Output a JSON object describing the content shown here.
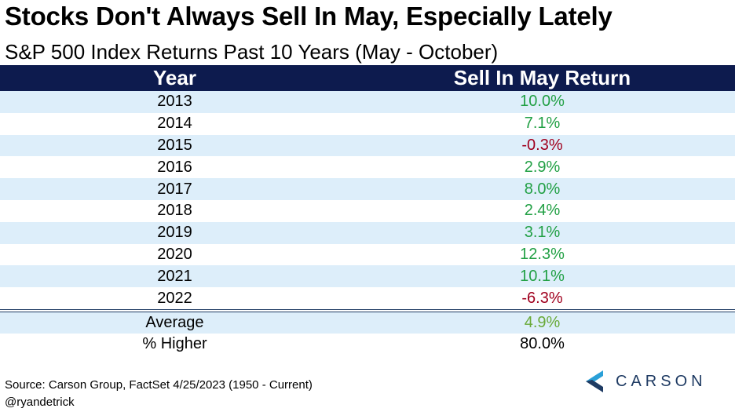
{
  "title": "Stocks Don't Always Sell In May, Especially Lately",
  "subtitle": "S&P 500 Index Returns Past 10 Years (May - October)",
  "source": "Source: Carson Group, FactSet 4/25/2023 (1950 - Current)",
  "handle": "@ryandetrick",
  "logo_text": "CARSON",
  "colors": {
    "header_bg": "#0d1b4e",
    "band": "#ddeefa",
    "positive": "#22a045",
    "negative": "#a0001e",
    "average": "#6aaa3a"
  },
  "chart_data": {
    "type": "table",
    "columns": [
      "Year",
      "Sell In May Return"
    ],
    "rows": [
      {
        "year": "2013",
        "return": "10.0%",
        "value": 10.0
      },
      {
        "year": "2014",
        "return": "7.1%",
        "value": 7.1
      },
      {
        "year": "2015",
        "return": "-0.3%",
        "value": -0.3
      },
      {
        "year": "2016",
        "return": "2.9%",
        "value": 2.9
      },
      {
        "year": "2017",
        "return": "8.0%",
        "value": 8.0
      },
      {
        "year": "2018",
        "return": "2.4%",
        "value": 2.4
      },
      {
        "year": "2019",
        "return": "3.1%",
        "value": 3.1
      },
      {
        "year": "2020",
        "return": "12.3%",
        "value": 12.3
      },
      {
        "year": "2021",
        "return": "10.1%",
        "value": 10.1
      },
      {
        "year": "2022",
        "return": "-6.3%",
        "value": -6.3
      }
    ],
    "summary": [
      {
        "label": "Average",
        "value": "4.9%"
      },
      {
        "label": "% Higher",
        "value": "80.0%"
      }
    ]
  }
}
